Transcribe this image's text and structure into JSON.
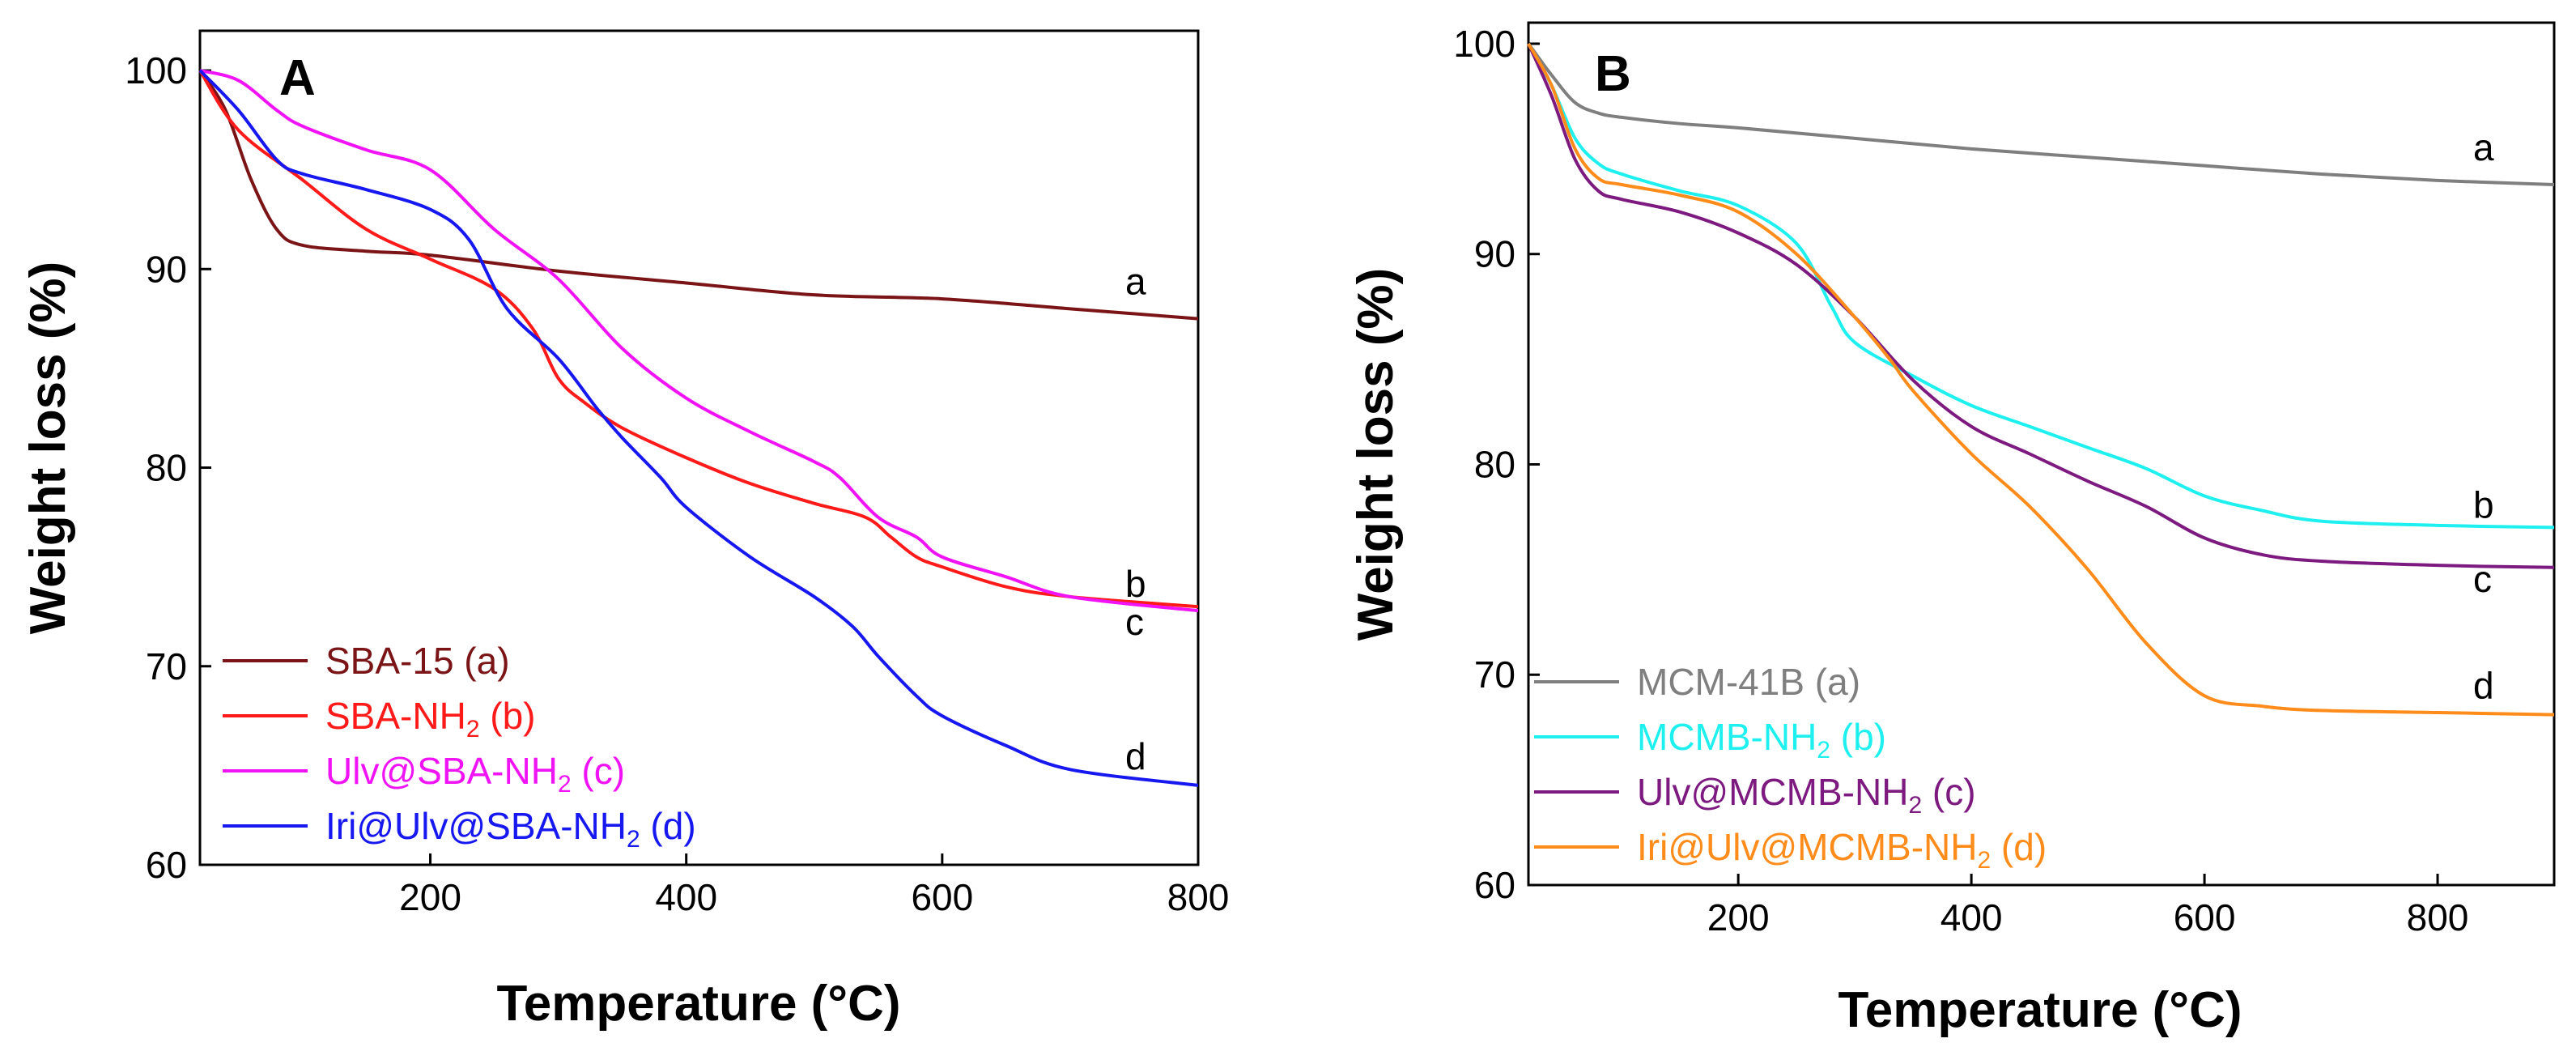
{
  "chart_data": [
    {
      "type": "line",
      "panel_label": "A",
      "xlabel": "Temperature (°C)",
      "ylabel": "Weight loss (%)",
      "xlim": [
        20,
        800
      ],
      "ylim": [
        60,
        102
      ],
      "x_ticks": [
        200,
        400,
        600,
        800
      ],
      "y_ticks": [
        60,
        70,
        80,
        90,
        100
      ],
      "legend_position": "bottom-left",
      "series": [
        {
          "name": "SBA-15 (a)",
          "name_main": "SBA-15 (a)",
          "name_sub": "",
          "name_tail": "",
          "tag": "a",
          "color": "#7B1416",
          "x": [
            20,
            40,
            60,
            80,
            100,
            150,
            200,
            300,
            400,
            500,
            600,
            700,
            800
          ],
          "y": [
            100,
            98,
            94.5,
            92,
            91.2,
            90.9,
            90.7,
            89.9,
            89.3,
            88.7,
            88.5,
            88.0,
            87.5
          ]
        },
        {
          "name": "SBA-NH2 (b)",
          "name_main": "SBA-NH",
          "name_sub": "2",
          "name_tail": " (b)",
          "tag": "b",
          "color": "#FF1A1A",
          "x": [
            20,
            50,
            100,
            150,
            200,
            250,
            280,
            300,
            320,
            350,
            400,
            450,
            500,
            540,
            560,
            580,
            600,
            650,
            700,
            800
          ],
          "y": [
            100,
            97,
            94.5,
            92.0,
            90.5,
            89.0,
            87.0,
            84.5,
            83.3,
            82.0,
            80.5,
            79.2,
            78.2,
            77.5,
            76.5,
            75.5,
            75.0,
            74.0,
            73.5,
            73.0
          ]
        },
        {
          "name": "Ulv@SBA-NH2 (c)",
          "name_main": "Ulv@SBA-NH",
          "name_sub": "2",
          "name_tail": " (c)",
          "tag": "c",
          "color": "#F013F5",
          "x": [
            20,
            50,
            80,
            100,
            150,
            200,
            250,
            300,
            350,
            400,
            450,
            500,
            520,
            550,
            580,
            600,
            650,
            700,
            800
          ],
          "y": [
            100,
            99.5,
            98.0,
            97.2,
            96.0,
            95.0,
            92.0,
            89.5,
            86.0,
            83.5,
            81.8,
            80.3,
            79.5,
            77.5,
            76.5,
            75.5,
            74.5,
            73.5,
            72.8
          ]
        },
        {
          "name": "Iri@Ulv@SBA-NH2 (d)",
          "name_main": "Iri@Ulv@SBA-NH",
          "name_sub": "2",
          "name_tail": " (d)",
          "tag": "d",
          "color": "#1717F0",
          "x": [
            20,
            50,
            80,
            100,
            150,
            200,
            230,
            260,
            300,
            330,
            350,
            380,
            400,
            450,
            500,
            530,
            550,
            580,
            600,
            650,
            700,
            800
          ],
          "y": [
            100,
            98.0,
            95.5,
            94.8,
            94.0,
            93.0,
            91.5,
            88.0,
            85.5,
            83.0,
            81.5,
            79.5,
            78.0,
            75.5,
            73.5,
            72.0,
            70.5,
            68.5,
            67.5,
            66.0,
            64.8,
            64.0
          ]
        }
      ]
    },
    {
      "type": "line",
      "panel_label": "B",
      "xlabel": "Temperature (°C)",
      "ylabel": "Weight loss (%)",
      "xlim": [
        20,
        900
      ],
      "ylim": [
        60,
        101
      ],
      "x_ticks": [
        200,
        400,
        600,
        800
      ],
      "y_ticks": [
        60,
        70,
        80,
        90,
        100
      ],
      "legend_position": "bottom-left",
      "series": [
        {
          "name": "MCM-41B (a)",
          "name_main": "MCM-41B (a)",
          "name_sub": "",
          "name_tail": "",
          "tag": "a",
          "color": "#7F7F7F",
          "x": [
            20,
            40,
            60,
            80,
            100,
            150,
            200,
            300,
            400,
            500,
            600,
            700,
            800,
            900
          ],
          "y": [
            100,
            98.5,
            97.2,
            96.7,
            96.5,
            96.2,
            96.0,
            95.5,
            95.0,
            94.6,
            94.2,
            93.8,
            93.5,
            93.3
          ]
        },
        {
          "name": "MCMB-NH2 (b)",
          "name_main": "MCMB-NH",
          "name_sub": "2",
          "name_tail": " (b)",
          "tag": "b",
          "color": "#1EF0F0",
          "x": [
            20,
            40,
            60,
            80,
            100,
            150,
            200,
            250,
            280,
            300,
            350,
            400,
            450,
            500,
            550,
            600,
            650,
            700,
            800,
            900
          ],
          "y": [
            100,
            98.0,
            95.5,
            94.3,
            93.8,
            93.0,
            92.3,
            90.5,
            87.5,
            85.8,
            84.2,
            82.8,
            81.8,
            80.8,
            79.8,
            78.5,
            77.8,
            77.3,
            77.1,
            77.0
          ]
        },
        {
          "name": "Ulv@MCMB-NH2 (c)",
          "name_main": "Ulv@MCMB-NH",
          "name_sub": "2",
          "name_tail": " (c)",
          "tag": "c",
          "color": "#7D1A80",
          "x": [
            20,
            40,
            60,
            80,
            100,
            150,
            200,
            250,
            300,
            350,
            400,
            450,
            500,
            550,
            600,
            650,
            700,
            800,
            900
          ],
          "y": [
            100,
            97.5,
            94.5,
            93.0,
            92.6,
            92.0,
            91.0,
            89.5,
            87.0,
            84.0,
            81.8,
            80.5,
            79.2,
            78.0,
            76.5,
            75.7,
            75.4,
            75.2,
            75.1
          ]
        },
        {
          "name": "Iri@Ulv@MCMB-NH2 (d)",
          "name_main": "Iri@Ulv@MCMB-NH",
          "name_sub": "2",
          "name_tail": " (d)",
          "tag": "d",
          "color": "#FF8C1A",
          "x": [
            20,
            40,
            60,
            80,
            100,
            150,
            200,
            250,
            300,
            330,
            350,
            400,
            450,
            500,
            550,
            600,
            650,
            700,
            800,
            900
          ],
          "y": [
            100,
            98.0,
            95.0,
            93.6,
            93.3,
            92.8,
            92.0,
            90.0,
            87.0,
            85.0,
            83.5,
            80.5,
            78.0,
            75.0,
            71.5,
            69.0,
            68.5,
            68.3,
            68.2,
            68.1
          ]
        }
      ]
    }
  ]
}
